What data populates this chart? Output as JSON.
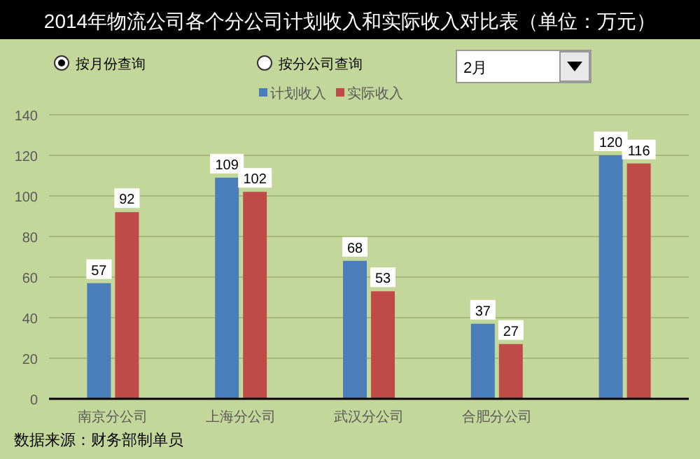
{
  "chart_data": {
    "type": "bar",
    "title": "2014年物流公司各个分公司计划收入和实际收入对比表（单位：万元）",
    "categories": [
      "南京分公司",
      "上海分公司",
      "武汉分公司",
      "合肥分公司",
      null
    ],
    "series": [
      {
        "name": "计划收入",
        "color": "#4a7ebb",
        "values": [
          57,
          109,
          68,
          37,
          120
        ]
      },
      {
        "name": "实际收入",
        "color": "#be4b48",
        "values": [
          92,
          102,
          53,
          27,
          116
        ]
      }
    ],
    "ylim": [
      0,
      140
    ],
    "yticks": [
      0,
      20,
      40,
      60,
      80,
      100,
      120,
      140
    ],
    "grid": "y",
    "legend": "top",
    "data_labels": true,
    "annotations": [
      "按月份查询",
      "按分公司查询",
      "2月",
      "数据来源：财务部制单员"
    ]
  }
}
